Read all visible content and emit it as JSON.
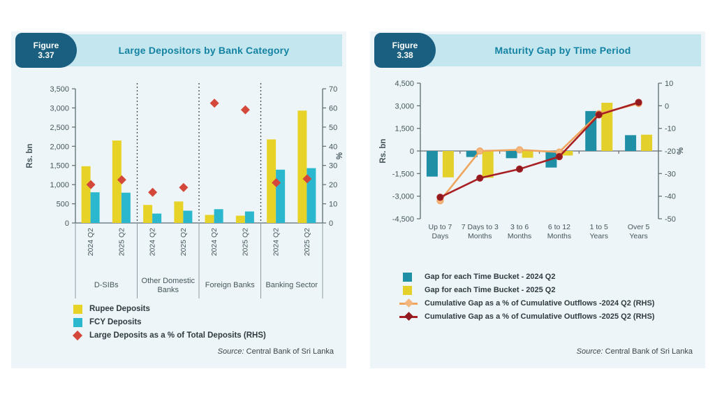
{
  "theme": {
    "page_bg": "#ffffff",
    "panel_bg": "#edf5f8",
    "header_strip_bg": "#c4e6ef",
    "badge_bg": "#1a5f80",
    "badge_text": "#ffffff",
    "title_color": "#1483a3",
    "axis_text": "#45565c",
    "axis_line": "#5b6b70",
    "zero_line": "#6a6a6a",
    "separator": "#2f2f2f",
    "group_line": "#8a9a9e",
    "legend_text": "#2f3b40"
  },
  "chart_data": [
    {
      "type": "bar",
      "figure_label": "Figure",
      "figure_number": "3.37",
      "title": "Large Depositors by Bank Category",
      "axes": {
        "left": {
          "label": "Rs. bn",
          "min": 0,
          "max": 3500,
          "step": 500
        },
        "right": {
          "label": "%",
          "min": 0,
          "max": 70,
          "step": 10
        }
      },
      "groups": [
        [
          "D-SIBs"
        ],
        [
          "Other Domestic",
          "Banks"
        ],
        [
          "Foreign Banks"
        ],
        [
          "Banking Sector"
        ]
      ],
      "x_labels": [
        "2024 Q2",
        "2025 Q2"
      ],
      "series": [
        {
          "name": "Rupee Deposits",
          "type": "bar",
          "color": "#e7d228",
          "values": [
            1480,
            2150,
            470,
            560,
            210,
            190,
            2180,
            2930
          ]
        },
        {
          "name": "FCY Deposits",
          "type": "bar",
          "color": "#2bb8ce",
          "values": [
            800,
            790,
            245,
            320,
            360,
            300,
            1390,
            1430
          ]
        },
        {
          "name": "Large Deposits as a % of Total Deposits (RHS)",
          "type": "scatter-diamond",
          "axis": "right",
          "color": "#d4483c",
          "values": [
            20,
            22.5,
            16,
            18.5,
            62.5,
            59,
            21,
            23
          ]
        }
      ],
      "grid": false,
      "legend_position": "bottom-left",
      "source_label": "Source:",
      "source_text": "Central Bank of Sri Lanka"
    },
    {
      "type": "bar",
      "figure_label": "Figure",
      "figure_number": "3.38",
      "title": "Maturity Gap by Time Period",
      "axes": {
        "left": {
          "label": "Rs. bn",
          "min": -4500,
          "max": 4500,
          "step": 1500
        },
        "right": {
          "label": "%",
          "min": -50,
          "max": 10,
          "step": 10
        }
      },
      "categories": [
        [
          "Up to 7",
          "Days"
        ],
        [
          "7 Days to 3",
          "Months"
        ],
        [
          "3 to 6",
          "Months"
        ],
        [
          "6 to 12",
          "Months"
        ],
        [
          "1 to 5",
          "Years"
        ],
        [
          "Over 5",
          "Years"
        ]
      ],
      "series": [
        {
          "name": "Gap for each Time Bucket - 2024 Q2",
          "type": "bar",
          "color": "#1f8fa6",
          "values": [
            -1700,
            -400,
            -480,
            -1100,
            2650,
            1050
          ]
        },
        {
          "name": "Gap for each Time Bucket - 2025 Q2",
          "type": "bar",
          "color": "#e3d02b",
          "values": [
            -1750,
            -1780,
            -450,
            -300,
            3200,
            1080
          ]
        },
        {
          "name": "Cumulative Gap as a % of Cumulative Outflows -2024 Q2 (RHS)",
          "type": "line",
          "axis": "right",
          "color": "#efa55e",
          "marker_color": "#f3b67d",
          "values": [
            -42,
            -20,
            -19.5,
            -20.5,
            -3.5,
            1
          ]
        },
        {
          "name": "Cumulative Gap as a % of Cumulative Outflows -2025 Q2 (RHS)",
          "type": "line",
          "axis": "right",
          "color": "#a81f24",
          "marker_color": "#8f1a1f",
          "values": [
            -40.5,
            -32,
            -28,
            -22.5,
            -4,
            1.5
          ]
        }
      ],
      "grid": false,
      "legend_position": "bottom-left",
      "source_label": "Source:",
      "source_text": "Central Bank of Sri Lanka"
    }
  ]
}
